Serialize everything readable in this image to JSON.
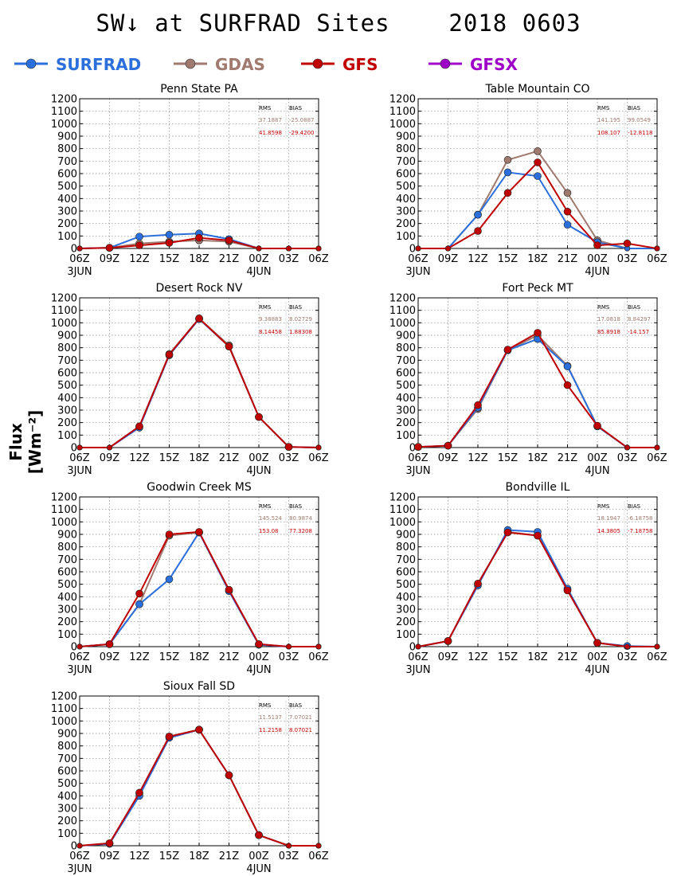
{
  "header": {
    "title": "SW↓ at SURFRAD Sites    2018 0603",
    "ylabel": "Flux [Wm⁻²]"
  },
  "legend": [
    {
      "name": "SURFRAD",
      "color": "#2a6fdc"
    },
    {
      "name": "GDAS",
      "color": "#a07a6e"
    },
    {
      "name": "GFS",
      "color": "#c10000"
    },
    {
      "name": "GFSX",
      "color": "#9e00c8"
    }
  ],
  "chart_data": [
    {
      "type": "line",
      "title": "Penn State PA",
      "x": [
        "06Z",
        "09Z",
        "12Z",
        "15Z",
        "18Z",
        "21Z",
        "00Z",
        "03Z",
        "06Z"
      ],
      "x_sublabels": [
        "3JUN",
        "",
        "",
        "",
        "",
        "",
        "4JUN",
        "",
        ""
      ],
      "ylim": [
        0,
        1200
      ],
      "yticks": [
        0,
        100,
        200,
        300,
        400,
        500,
        600,
        700,
        800,
        900,
        1000,
        1100,
        1200
      ],
      "grid": true,
      "stats": {
        "header": [
          "RMS",
          "BIAS"
        ],
        "rows": [
          {
            "series": "GDAS",
            "values": [
              "37.1887",
              "-25.0887"
            ]
          },
          {
            "series": "GFS",
            "values": [
              "41.8598",
              "-29.4200"
            ]
          }
        ]
      },
      "series": [
        {
          "name": "SURFRAD",
          "values": [
            0,
            5,
            95,
            110,
            120,
            75,
            0,
            0,
            0
          ]
        },
        {
          "name": "GDAS",
          "values": [
            0,
            5,
            40,
            55,
            65,
            55,
            0,
            0,
            0
          ]
        },
        {
          "name": "GFS",
          "values": [
            0,
            5,
            25,
            45,
            85,
            65,
            0,
            0,
            0
          ]
        }
      ]
    },
    {
      "type": "line",
      "title": "Table Mountain CO",
      "x": [
        "06Z",
        "09Z",
        "12Z",
        "15Z",
        "18Z",
        "21Z",
        "00Z",
        "03Z",
        "06Z"
      ],
      "x_sublabels": [
        "3JUN",
        "",
        "",
        "",
        "",
        "",
        "4JUN",
        "",
        ""
      ],
      "ylim": [
        0,
        1200
      ],
      "yticks": [
        0,
        100,
        200,
        300,
        400,
        500,
        600,
        700,
        800,
        900,
        1000,
        1100,
        1200
      ],
      "grid": true,
      "stats": {
        "header": [
          "RMS",
          "BIAS"
        ],
        "rows": [
          {
            "series": "GDAS",
            "values": [
              "141.195",
              "99.0549"
            ]
          },
          {
            "series": "GFS",
            "values": [
              "108.107",
              "-12.8118"
            ]
          }
        ]
      },
      "series": [
        {
          "name": "SURFRAD",
          "values": [
            0,
            0,
            270,
            610,
            580,
            190,
            50,
            0,
            0
          ]
        },
        {
          "name": "GDAS",
          "values": [
            0,
            0,
            270,
            710,
            780,
            445,
            65,
            0,
            0
          ]
        },
        {
          "name": "GFS",
          "values": [
            0,
            0,
            140,
            445,
            690,
            295,
            25,
            40,
            0
          ]
        }
      ]
    },
    {
      "type": "line",
      "title": "Desert Rock NV",
      "x": [
        "06Z",
        "09Z",
        "12Z",
        "15Z",
        "18Z",
        "21Z",
        "00Z",
        "03Z",
        "06Z"
      ],
      "x_sublabels": [
        "3JUN",
        "",
        "",
        "",
        "",
        "",
        "4JUN",
        "",
        ""
      ],
      "ylim": [
        0,
        1200
      ],
      "yticks": [
        0,
        100,
        200,
        300,
        400,
        500,
        600,
        700,
        800,
        900,
        1000,
        1100,
        1200
      ],
      "grid": true,
      "stats": {
        "header": [
          "RMS",
          "BIAS"
        ],
        "rows": [
          {
            "series": "GDAS",
            "values": [
              "9.38883",
              "8.02729"
            ]
          },
          {
            "series": "GFS",
            "values": [
              "8.14458",
              "1.88308"
            ]
          }
        ]
      },
      "series": [
        {
          "name": "SURFRAD",
          "values": [
            0,
            0,
            160,
            740,
            1030,
            810,
            245,
            5,
            0
          ]
        },
        {
          "name": "GDAS",
          "values": [
            0,
            0,
            170,
            750,
            1035,
            820,
            245,
            5,
            0
          ]
        },
        {
          "name": "GFS",
          "values": [
            0,
            0,
            170,
            745,
            1035,
            810,
            245,
            5,
            0
          ]
        }
      ]
    },
    {
      "type": "line",
      "title": "Fort Peck MT",
      "x": [
        "06Z",
        "09Z",
        "12Z",
        "15Z",
        "18Z",
        "21Z",
        "00Z",
        "03Z",
        "06Z"
      ],
      "x_sublabels": [
        "3JUN",
        "",
        "",
        "",
        "",
        "",
        "4JUN",
        "",
        ""
      ],
      "ylim": [
        0,
        1200
      ],
      "yticks": [
        0,
        100,
        200,
        300,
        400,
        500,
        600,
        700,
        800,
        900,
        1000,
        1100,
        1200
      ],
      "grid": true,
      "stats": {
        "header": [
          "RMS",
          "BIAS"
        ],
        "rows": [
          {
            "series": "GDAS",
            "values": [
              "17.0818",
              "8.84297"
            ]
          },
          {
            "series": "GFS",
            "values": [
              "85.8918",
              "-14.157"
            ]
          }
        ]
      },
      "series": [
        {
          "name": "SURFRAD",
          "values": [
            5,
            15,
            320,
            780,
            870,
            650,
            170,
            0,
            0
          ]
        },
        {
          "name": "GDAS",
          "values": [
            5,
            15,
            310,
            780,
            900,
            655,
            170,
            0,
            0
          ]
        },
        {
          "name": "GFS",
          "values": [
            5,
            15,
            340,
            785,
            920,
            500,
            175,
            0,
            0
          ]
        }
      ]
    },
    {
      "type": "line",
      "title": "Goodwin Creek MS",
      "x": [
        "06Z",
        "09Z",
        "12Z",
        "15Z",
        "18Z",
        "21Z",
        "00Z",
        "03Z",
        "06Z"
      ],
      "x_sublabels": [
        "3JUN",
        "",
        "",
        "",
        "",
        "",
        "4JUN",
        "",
        ""
      ],
      "ylim": [
        0,
        1200
      ],
      "yticks": [
        0,
        100,
        200,
        300,
        400,
        500,
        600,
        700,
        800,
        900,
        1000,
        1100,
        1200
      ],
      "grid": true,
      "stats": {
        "header": [
          "RMS",
          "BIAS"
        ],
        "rows": [
          {
            "series": "GDAS",
            "values": [
              "145.524",
              "80.9874"
            ]
          },
          {
            "series": "GFS",
            "values": [
              "153.08",
              "77.3208"
            ]
          }
        ]
      },
      "series": [
        {
          "name": "SURFRAD",
          "values": [
            0,
            20,
            340,
            540,
            915,
            445,
            15,
            0,
            0
          ]
        },
        {
          "name": "GDAS",
          "values": [
            0,
            20,
            340,
            890,
            915,
            455,
            20,
            0,
            0
          ]
        },
        {
          "name": "GFS",
          "values": [
            0,
            20,
            425,
            900,
            920,
            455,
            20,
            0,
            0
          ]
        }
      ]
    },
    {
      "type": "line",
      "title": "Bondville IL",
      "x": [
        "06Z",
        "09Z",
        "12Z",
        "15Z",
        "18Z",
        "21Z",
        "00Z",
        "03Z",
        "06Z"
      ],
      "x_sublabels": [
        "3JUN",
        "",
        "",
        "",
        "",
        "",
        "4JUN",
        "",
        ""
      ],
      "ylim": [
        0,
        1200
      ],
      "yticks": [
        0,
        100,
        200,
        300,
        400,
        500,
        600,
        700,
        800,
        900,
        1000,
        1100,
        1200
      ],
      "grid": true,
      "stats": {
        "header": [
          "RMS",
          "BIAS"
        ],
        "rows": [
          {
            "series": "GDAS",
            "values": [
              "18.1947",
              "-6.18758"
            ]
          },
          {
            "series": "GFS",
            "values": [
              "14.3805",
              "-7.18758"
            ]
          }
        ]
      },
      "series": [
        {
          "name": "SURFRAD",
          "values": [
            0,
            45,
            490,
            935,
            920,
            465,
            30,
            5,
            0
          ]
        },
        {
          "name": "GDAS",
          "values": [
            0,
            45,
            505,
            920,
            890,
            455,
            30,
            0,
            0
          ]
        },
        {
          "name": "GFS",
          "values": [
            0,
            45,
            505,
            915,
            890,
            450,
            30,
            0,
            0
          ]
        }
      ]
    },
    {
      "type": "line",
      "title": "Sioux Fall SD",
      "x": [
        "06Z",
        "09Z",
        "12Z",
        "15Z",
        "18Z",
        "21Z",
        "00Z",
        "03Z",
        "06Z"
      ],
      "x_sublabels": [
        "3JUN",
        "",
        "",
        "",
        "",
        "",
        "4JUN",
        "",
        ""
      ],
      "ylim": [
        0,
        1200
      ],
      "yticks": [
        0,
        100,
        200,
        300,
        400,
        500,
        600,
        700,
        800,
        900,
        1000,
        1100,
        1200
      ],
      "grid": true,
      "stats": {
        "header": [
          "RMS",
          "BIAS"
        ],
        "rows": [
          {
            "series": "GDAS",
            "values": [
              "11.5137",
              "7.07021"
            ]
          },
          {
            "series": "GFS",
            "values": [
              "11.2158",
              "8.07021"
            ]
          }
        ]
      },
      "series": [
        {
          "name": "SURFRAD",
          "values": [
            0,
            15,
            400,
            865,
            930,
            565,
            85,
            0,
            0
          ]
        },
        {
          "name": "GDAS",
          "values": [
            0,
            20,
            420,
            875,
            930,
            565,
            85,
            0,
            0
          ]
        },
        {
          "name": "GFS",
          "values": [
            0,
            20,
            425,
            875,
            930,
            565,
            85,
            0,
            0
          ]
        }
      ]
    }
  ]
}
